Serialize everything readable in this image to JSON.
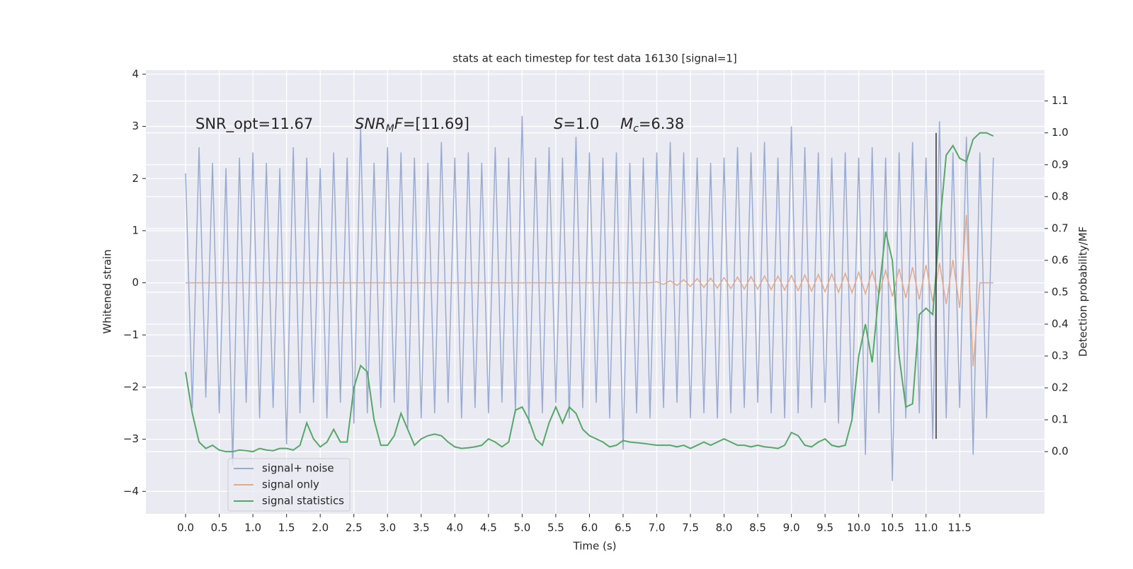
{
  "chart_data": {
    "type": "line",
    "title": "stats at each timestep for test data 16130 [signal=1]",
    "xlabel": "Time (s)",
    "ylabel": "Whitened strain",
    "y2label": "Detection probability/MF",
    "x": [
      0.0,
      0.1,
      0.2,
      0.3,
      0.4,
      0.5,
      0.6,
      0.7,
      0.8,
      0.9,
      1.0,
      1.1,
      1.2,
      1.3,
      1.4,
      1.5,
      1.6,
      1.7,
      1.8,
      1.9,
      2.0,
      2.1,
      2.2,
      2.3,
      2.4,
      2.5,
      2.6,
      2.7,
      2.8,
      2.9,
      3.0,
      3.1,
      3.2,
      3.3,
      3.4,
      3.5,
      3.6,
      3.7,
      3.8,
      3.9,
      4.0,
      4.1,
      4.2,
      4.3,
      4.4,
      4.5,
      4.6,
      4.7,
      4.8,
      4.9,
      5.0,
      5.1,
      5.2,
      5.3,
      5.4,
      5.5,
      5.6,
      5.7,
      5.8,
      5.9,
      6.0,
      6.1,
      6.2,
      6.3,
      6.4,
      6.5,
      6.6,
      6.7,
      6.8,
      6.9,
      7.0,
      7.1,
      7.2,
      7.3,
      7.4,
      7.5,
      7.6,
      7.7,
      7.8,
      7.9,
      8.0,
      8.1,
      8.2,
      8.3,
      8.4,
      8.5,
      8.6,
      8.7,
      8.8,
      8.9,
      9.0,
      9.1,
      9.2,
      9.3,
      9.4,
      9.5,
      9.6,
      9.7,
      9.8,
      9.9,
      10.0,
      10.1,
      10.2,
      10.3,
      10.4,
      10.5,
      10.6,
      10.7,
      10.8,
      10.9,
      11.0,
      11.1,
      11.2,
      11.3,
      11.4,
      11.5,
      11.6,
      11.7,
      11.8,
      11.9,
      12.0
    ],
    "series": [
      {
        "name": "signal+ noise",
        "color": "#9aabd1",
        "axis": "y",
        "values": [
          2.1,
          -2.4,
          2.6,
          -2.2,
          2.3,
          -2.5,
          2.2,
          -3.5,
          2.4,
          -2.3,
          2.5,
          -2.6,
          2.3,
          -2.4,
          2.2,
          -3.1,
          2.6,
          -2.5,
          2.4,
          -2.3,
          2.2,
          -2.6,
          2.5,
          -2.3,
          2.4,
          -2.7,
          3.0,
          -2.5,
          2.3,
          -2.4,
          2.6,
          -2.3,
          2.5,
          -2.8,
          2.4,
          -2.6,
          2.3,
          -2.5,
          2.7,
          -2.3,
          2.4,
          -2.6,
          2.5,
          -2.4,
          2.3,
          -2.5,
          2.6,
          -2.3,
          2.4,
          -2.5,
          3.2,
          -2.7,
          2.4,
          -2.5,
          2.6,
          -2.3,
          2.4,
          -2.6,
          2.8,
          -2.4,
          2.5,
          -2.3,
          2.4,
          -2.6,
          2.5,
          -3.2,
          2.3,
          -2.5,
          2.4,
          -2.6,
          2.5,
          -2.4,
          2.7,
          -2.3,
          2.5,
          -2.6,
          2.4,
          -2.5,
          2.3,
          -2.6,
          2.4,
          -2.5,
          2.6,
          -2.4,
          2.5,
          -2.3,
          2.7,
          -2.5,
          2.4,
          -2.6,
          3.0,
          -2.5,
          2.6,
          -2.4,
          2.5,
          -2.3,
          2.4,
          -2.7,
          2.5,
          -2.6,
          2.4,
          -3.3,
          2.6,
          -2.5,
          2.4,
          -3.8,
          2.5,
          -2.6,
          2.7,
          -2.5,
          2.4,
          -3.0,
          3.1,
          -2.6,
          2.5,
          -2.4,
          2.8,
          -3.3,
          2.5,
          -2.6,
          2.4
        ]
      },
      {
        "name": "signal only",
        "color": "#e3a98a",
        "axis": "y",
        "values": [
          0,
          0,
          0,
          0,
          0,
          0,
          0,
          0,
          0,
          0,
          0,
          0,
          0,
          0,
          0,
          0,
          0,
          0,
          0,
          0,
          0,
          0,
          0,
          0,
          0,
          0,
          0,
          0,
          0,
          0,
          0,
          0,
          0,
          0,
          0,
          0,
          0,
          0,
          0,
          0,
          0,
          0,
          0,
          0,
          0,
          0,
          0,
          0,
          0,
          0,
          0,
          0,
          0,
          0,
          0,
          0,
          0,
          0,
          0,
          0,
          0,
          0,
          0,
          0,
          0,
          0,
          0,
          0,
          0,
          0,
          0.02,
          -0.03,
          0.04,
          -0.05,
          0.06,
          -0.07,
          0.08,
          -0.09,
          0.09,
          -0.1,
          0.1,
          -0.11,
          0.11,
          -0.12,
          0.12,
          -0.12,
          0.13,
          -0.13,
          0.13,
          -0.14,
          0.14,
          -0.15,
          0.15,
          -0.16,
          0.16,
          -0.17,
          0.17,
          -0.18,
          0.18,
          -0.19,
          0.2,
          -0.21,
          0.22,
          -0.23,
          0.24,
          -0.26,
          0.27,
          -0.29,
          0.3,
          -0.32,
          0.34,
          -0.36,
          0.38,
          -0.41,
          0.44,
          -0.48,
          1.3,
          -1.6,
          0.0,
          0.0,
          0.0
        ]
      },
      {
        "name": "signal statistics",
        "color": "#55a868",
        "axis": "y2",
        "values": [
          0.25,
          0.12,
          0.03,
          0.01,
          0.02,
          0.005,
          0.0,
          0.0,
          0.005,
          0.003,
          0.0,
          0.01,
          0.005,
          0.003,
          0.01,
          0.01,
          0.005,
          0.02,
          0.09,
          0.04,
          0.015,
          0.03,
          0.07,
          0.03,
          0.03,
          0.2,
          0.27,
          0.25,
          0.1,
          0.02,
          0.02,
          0.05,
          0.12,
          0.07,
          0.02,
          0.04,
          0.05,
          0.055,
          0.05,
          0.03,
          0.015,
          0.01,
          0.012,
          0.015,
          0.02,
          0.04,
          0.03,
          0.015,
          0.03,
          0.13,
          0.14,
          0.1,
          0.04,
          0.02,
          0.09,
          0.14,
          0.09,
          0.14,
          0.12,
          0.07,
          0.05,
          0.04,
          0.03,
          0.015,
          0.02,
          0.035,
          0.03,
          0.028,
          0.026,
          0.023,
          0.02,
          0.02,
          0.02,
          0.015,
          0.02,
          0.01,
          0.02,
          0.03,
          0.02,
          0.03,
          0.04,
          0.03,
          0.02,
          0.02,
          0.015,
          0.02,
          0.015,
          0.013,
          0.01,
          0.02,
          0.06,
          0.05,
          0.02,
          0.015,
          0.03,
          0.04,
          0.02,
          0.015,
          0.02,
          0.1,
          0.3,
          0.4,
          0.28,
          0.5,
          0.69,
          0.6,
          0.3,
          0.14,
          0.15,
          0.43,
          0.45,
          0.43,
          0.7,
          0.93,
          0.96,
          0.92,
          0.91,
          0.98,
          1.0,
          1.0,
          0.99
        ]
      }
    ],
    "vline": {
      "x": 11.15,
      "ymin": 0.04,
      "ymax": 1.0,
      "color": "#333333"
    },
    "annotations": [
      {
        "parts": [
          {
            "text": "SNR_opt=11.67"
          }
        ]
      },
      {
        "parts": [
          {
            "text": "SNR",
            "italic": true
          },
          {
            "text": "M",
            "italic": true,
            "sub": true
          },
          {
            "text": "F",
            "italic": true
          },
          {
            "text": "=[11.69]"
          }
        ]
      },
      {
        "parts": [
          {
            "text": "S",
            "italic": true
          },
          {
            "text": "=1.0"
          }
        ]
      },
      {
        "parts": [
          {
            "text": "M",
            "italic": true
          },
          {
            "text": "c",
            "italic": true,
            "sub": true
          },
          {
            "text": "=6.38"
          }
        ]
      }
    ],
    "xlim": [
      -0.59,
      12.76
    ],
    "xticks": [
      {
        "value": 0,
        "label": "0.0"
      },
      0.5,
      {
        "value": 1,
        "label": "1.0"
      },
      1.5,
      {
        "value": 2,
        "label": "2.0"
      },
      2.5,
      {
        "value": 3,
        "label": "3.0"
      },
      3.5,
      {
        "value": 4,
        "label": "4.0"
      },
      4.5,
      {
        "value": 5,
        "label": "5.0"
      },
      5.5,
      {
        "value": 6,
        "label": "6.0"
      },
      6.5,
      {
        "value": 7,
        "label": "7.0"
      },
      7.5,
      {
        "value": 8,
        "label": "8.0"
      },
      8.5,
      {
        "value": 9,
        "label": "9.0"
      },
      9.5,
      {
        "value": 10,
        "label": "10.0"
      },
      10.5,
      {
        "value": 11,
        "label": "11.0"
      },
      11.5
    ],
    "ylim": [
      -4.43,
      4.08
    ],
    "yticks": [
      {
        "value": -4,
        "label": "−4"
      },
      {
        "value": -3,
        "label": "−3"
      },
      {
        "value": -2,
        "label": "−2"
      },
      {
        "value": -1,
        "label": "−1"
      },
      0,
      1,
      2,
      3,
      4
    ],
    "y2lim": [
      -0.195,
      1.197
    ],
    "y2ticks": [
      {
        "value": 0,
        "label": "0.0"
      },
      0.1,
      0.2,
      0.3,
      0.4,
      0.5,
      0.6,
      0.7,
      0.8,
      0.9,
      {
        "value": 1,
        "label": "1.0"
      },
      1.1
    ],
    "grid": true,
    "legend": "lower left"
  }
}
